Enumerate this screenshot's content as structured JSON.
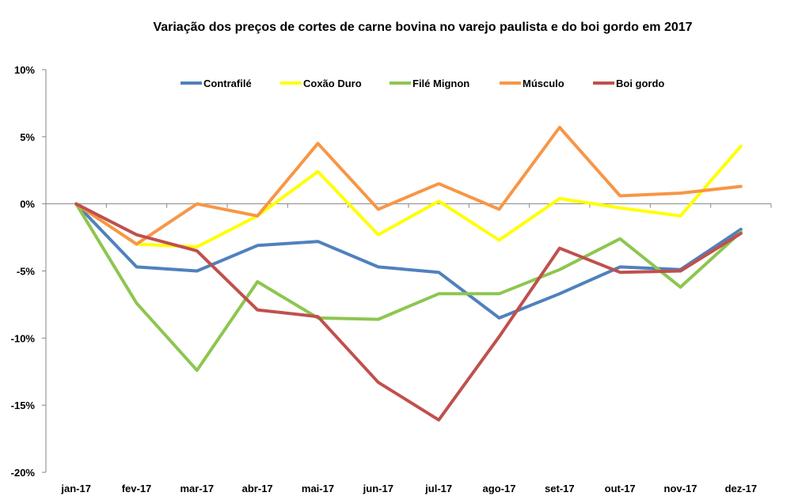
{
  "chart_data": {
    "type": "line",
    "title": "Variação dos preços de cortes de carne bovina no varejo paulista e do boi gordo em 2017",
    "xlabel": "",
    "ylabel": "",
    "categories": [
      "jan-17",
      "fev-17",
      "mar-17",
      "abr-17",
      "mai-17",
      "jun-17",
      "jul-17",
      "ago-17",
      "set-17",
      "out-17",
      "nov-17",
      "dez-17"
    ],
    "ylim": [
      -20,
      10
    ],
    "yticks": [
      10,
      5,
      0,
      -5,
      -10,
      -15,
      -20
    ],
    "ytick_labels": [
      "10%",
      "5%",
      "0%",
      "-5%",
      "-10%",
      "-15%",
      "-20%"
    ],
    "grid": false,
    "legend_position": "top",
    "series": [
      {
        "name": "Contrafilé",
        "color": "#4F81BD",
        "values": [
          0,
          -4.7,
          -5.0,
          -3.1,
          -2.8,
          -4.7,
          -5.1,
          -8.5,
          -6.7,
          -4.7,
          -4.9,
          -1.9
        ]
      },
      {
        "name": "Coxão Duro",
        "color": "#FFFF00",
        "values": [
          0,
          -3.0,
          -3.2,
          -0.9,
          2.4,
          -2.3,
          0.2,
          -2.7,
          0.4,
          -0.3,
          -0.9,
          4.3
        ]
      },
      {
        "name": "Filé Mignon",
        "color": "#8DC650",
        "values": [
          0,
          -7.4,
          -12.4,
          -5.8,
          -8.5,
          -8.6,
          -6.7,
          -6.7,
          -4.9,
          -2.6,
          -6.2,
          -2.1
        ]
      },
      {
        "name": "Músculo",
        "color": "#F79646",
        "values": [
          0,
          -3.0,
          0.0,
          -0.9,
          4.5,
          -0.4,
          1.5,
          -0.4,
          5.7,
          0.6,
          0.8,
          1.3
        ]
      },
      {
        "name": "Boi gordo",
        "color": "#C0504D",
        "values": [
          0,
          -2.3,
          -3.5,
          -7.9,
          -8.4,
          -13.3,
          -16.1,
          -9.9,
          -3.3,
          -5.1,
          -5.0,
          -2.2
        ]
      }
    ]
  }
}
